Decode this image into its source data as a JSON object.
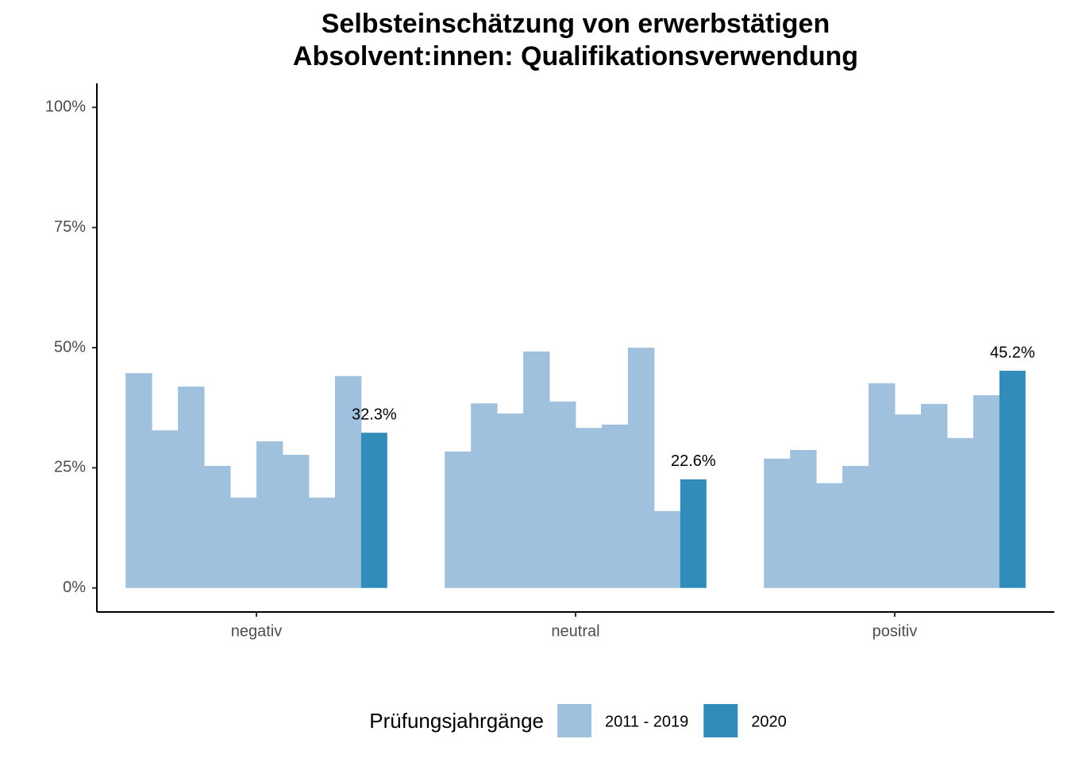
{
  "chart_data": {
    "type": "bar",
    "title": "Selbsteinschätzung von erwerbstätigen\nAbsolvent:innen: Qualifikationsverwendung",
    "categories": [
      "negativ",
      "neutral",
      "positiv"
    ],
    "series": [
      {
        "name": "2011 - 2019",
        "color": "#a0c1de",
        "values": [
          [
            44.7,
            32.8,
            41.9,
            25.4,
            18.8,
            30.5,
            27.7,
            18.8,
            44.1
          ],
          [
            28.4,
            38.4,
            36.3,
            49.2,
            38.8,
            33.3,
            34.0,
            50.0,
            16.0
          ],
          [
            26.9,
            28.7,
            21.8,
            25.4,
            42.6,
            36.1,
            38.3,
            31.2,
            40.1
          ]
        ]
      },
      {
        "name": "2020",
        "color": "#318cb9",
        "values": [
          32.3,
          22.6,
          45.2
        ],
        "value_labels": [
          "32.3%",
          "22.6%",
          "45.2%"
        ]
      }
    ],
    "ylim": [
      -5,
      105
    ],
    "yticks": [
      {
        "value": 0,
        "label": "0%"
      },
      {
        "value": 25,
        "label": "25%"
      },
      {
        "value": 50,
        "label": "50%"
      },
      {
        "value": 75,
        "label": "75%"
      },
      {
        "value": 100,
        "label": "100%"
      }
    ],
    "legend_title": "Prüfungsjahrgänge",
    "legend_position": "bottom",
    "grid": false
  }
}
